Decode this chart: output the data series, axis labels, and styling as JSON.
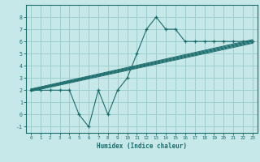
{
  "xlabel": "Humidex (Indice chaleur)",
  "bg_color": "#c6e8e8",
  "grid_color": "#9ecece",
  "line_color": "#1a6b6b",
  "xlim": [
    -0.5,
    23.5
  ],
  "ylim": [
    -1.5,
    9.0
  ],
  "yticks": [
    -1,
    0,
    1,
    2,
    3,
    4,
    5,
    6,
    7,
    8
  ],
  "xticks": [
    0,
    1,
    2,
    3,
    4,
    5,
    6,
    7,
    8,
    9,
    10,
    11,
    12,
    13,
    14,
    15,
    16,
    17,
    18,
    19,
    20,
    21,
    22,
    23
  ],
  "main_y": [
    2,
    2,
    2,
    2,
    2,
    0,
    -1,
    2,
    0,
    2,
    3,
    5,
    7,
    8,
    7,
    7,
    6,
    6,
    6,
    6,
    6,
    6,
    6,
    6
  ],
  "reg_line_x": [
    0,
    23
  ],
  "reg_line_y": [
    2.0,
    6.0
  ],
  "band_lines": [
    [
      2.1,
      6.15
    ],
    [
      2.05,
      6.08
    ],
    [
      1.95,
      5.92
    ],
    [
      1.9,
      5.85
    ]
  ]
}
